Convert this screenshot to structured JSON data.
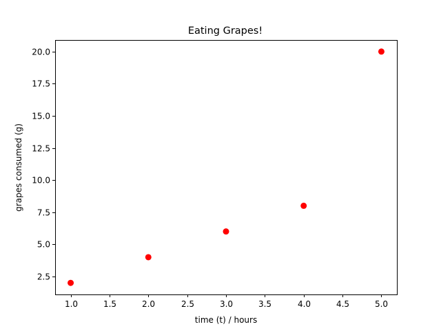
{
  "chart_data": {
    "type": "scatter",
    "title": "Eating Grapes!",
    "xlabel": "time (t) / hours",
    "ylabel": "grapes consumed (g)",
    "x": [
      1,
      2,
      3,
      4,
      5
    ],
    "y": [
      2,
      4,
      6,
      8,
      20
    ],
    "xlim": [
      0.8,
      5.2
    ],
    "ylim": [
      1.1,
      20.9
    ],
    "xticks": [
      1.0,
      1.5,
      2.0,
      2.5,
      3.0,
      3.5,
      4.0,
      4.5,
      5.0
    ],
    "yticks": [
      2.5,
      5.0,
      7.5,
      10.0,
      12.5,
      15.0,
      17.5,
      20.0
    ],
    "xtick_labels": [
      "1.0",
      "1.5",
      "2.0",
      "2.5",
      "3.0",
      "3.5",
      "4.0",
      "4.5",
      "5.0"
    ],
    "ytick_labels": [
      "2.5",
      "5.0",
      "7.5",
      "10.0",
      "12.5",
      "15.0",
      "17.5",
      "20.0"
    ],
    "marker_color": "#ff0000",
    "grid": false,
    "legend": false
  }
}
